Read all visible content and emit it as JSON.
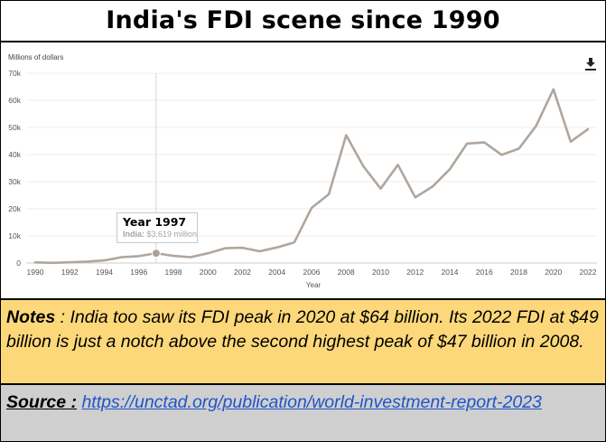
{
  "header": {
    "title": "India's FDI scene since 1990"
  },
  "chart_data": {
    "type": "line",
    "title": "",
    "ylabel": "Millions of dollars",
    "xlabel": "Year",
    "ylim": [
      0,
      70000
    ],
    "xlim": [
      1990,
      2022
    ],
    "yticks": [
      0,
      10000,
      20000,
      30000,
      40000,
      50000,
      60000,
      70000
    ],
    "ytick_labels": [
      "0",
      "10k",
      "20k",
      "30k",
      "40k",
      "50k",
      "60k",
      "70k"
    ],
    "xticks": [
      1990,
      1992,
      1994,
      1996,
      1998,
      2000,
      2002,
      2004,
      2006,
      2008,
      2010,
      2012,
      2014,
      2016,
      2018,
      2020,
      2022
    ],
    "grid": true,
    "line_color": "#b0a69d",
    "series": [
      {
        "name": "India",
        "x": [
          1990,
          1991,
          1992,
          1993,
          1994,
          1995,
          1996,
          1997,
          1998,
          1999,
          2000,
          2001,
          2002,
          2003,
          2004,
          2005,
          2006,
          2007,
          2008,
          2009,
          2010,
          2011,
          2012,
          2013,
          2014,
          2015,
          2016,
          2017,
          2018,
          2019,
          2020,
          2021,
          2022
        ],
        "values": [
          237,
          75,
          252,
          532,
          974,
          2151,
          2525,
          3619,
          2633,
          2168,
          3588,
          5478,
          5630,
          4321,
          5778,
          7622,
          20328,
          25350,
          47139,
          35657,
          27417,
          36190,
          24196,
          28199,
          34582,
          44064,
          44481,
          39904,
          42156,
          50558,
          64062,
          44735,
          49355
        ]
      }
    ],
    "tooltip": {
      "title": "Year 1997",
      "series_label": "India:",
      "value_label": "$3,619 million",
      "year": 1997,
      "value": 3619
    }
  },
  "notes": {
    "label": "Notes",
    "text": " : India too saw its FDI peak in 2020 at $64 billion.  Its 2022 FDI at $49 billion is just a notch above the second highest peak of $47 billion in 2008."
  },
  "source": {
    "label": "Source :",
    "link": "https://unctad.org/publication/world-investment-report-2023"
  },
  "toolbar": {
    "download_icon": "download-icon"
  }
}
